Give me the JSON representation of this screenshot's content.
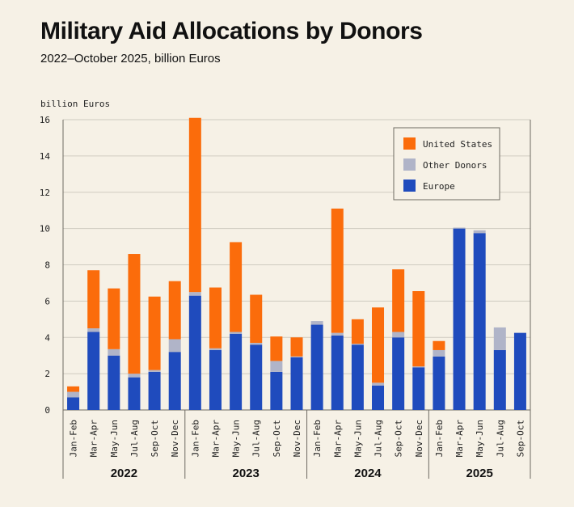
{
  "header": {
    "title": "Military Aid Allocations by Donors",
    "subtitle": "2022–October 2025, billion Euros"
  },
  "colors": {
    "europe": "#1f4bbd",
    "other": "#b0b4c8",
    "us": "#fb6c0b",
    "grid": "#cfcbc0",
    "axis": "#6e6a62"
  },
  "chart_data": {
    "type": "bar",
    "stacked": true,
    "ylabel": "billion Euros",
    "ylim": [
      0,
      16
    ],
    "yticks": [
      0,
      2,
      4,
      6,
      8,
      10,
      12,
      14,
      16
    ],
    "grid": true,
    "legend_position": "top-right",
    "categories": [
      "Jan-Feb",
      "Mar-Apr",
      "May-Jun",
      "Jul-Aug",
      "Sep-Oct",
      "Nov-Dec",
      "Jan-Feb",
      "Mar-Apr",
      "May-Jun",
      "Jul-Aug",
      "Sep-Oct",
      "Nov-Dec",
      "Jan-Feb",
      "Mar-Apr",
      "May-Jun",
      "Jul-Aug",
      "Sep-Oct",
      "Nov-Dec",
      "Jan-Feb",
      "Mar-Apr",
      "May-Jun",
      "Jul-Aug",
      "Sep-Oct"
    ],
    "groups": [
      {
        "label": "2022",
        "start": 0,
        "count": 6
      },
      {
        "label": "2023",
        "start": 6,
        "count": 6
      },
      {
        "label": "2024",
        "start": 12,
        "count": 6
      },
      {
        "label": "2025",
        "start": 18,
        "count": 5
      }
    ],
    "series": [
      {
        "name": "Europe",
        "color_key": "europe",
        "values": [
          0.7,
          4.3,
          3.0,
          1.8,
          2.1,
          3.2,
          6.3,
          3.3,
          4.2,
          3.6,
          2.1,
          2.9,
          4.7,
          4.1,
          3.6,
          1.35,
          4.0,
          2.35,
          2.95,
          10.0,
          9.75,
          3.3,
          4.25
        ]
      },
      {
        "name": "Other Donors",
        "color_key": "other",
        "values": [
          0.3,
          0.2,
          0.35,
          0.2,
          0.1,
          0.7,
          0.2,
          0.1,
          0.1,
          0.1,
          0.6,
          0.05,
          0.2,
          0.15,
          0.05,
          0.15,
          0.3,
          0.05,
          0.35,
          0.05,
          0.15,
          1.25,
          0.0
        ]
      },
      {
        "name": "United States",
        "color_key": "us",
        "values": [
          0.3,
          3.2,
          3.35,
          6.6,
          4.05,
          3.2,
          9.6,
          3.35,
          4.95,
          2.65,
          1.35,
          1.05,
          0.0,
          6.85,
          1.35,
          4.15,
          3.45,
          4.15,
          0.5,
          0.0,
          0.0,
          0.0,
          0.0
        ]
      }
    ],
    "legend_order": [
      "United States",
      "Other Donors",
      "Europe"
    ]
  }
}
